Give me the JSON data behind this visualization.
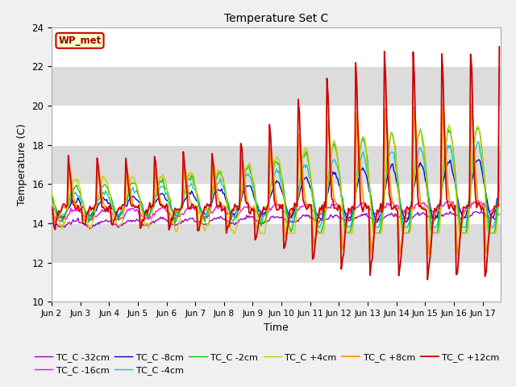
{
  "title": "Temperature Set C",
  "xlabel": "Time",
  "ylabel": "Temperature (C)",
  "ylim": [
    10,
    24
  ],
  "xlim": [
    0,
    375
  ],
  "bg_light": "#f0f0f0",
  "bg_dark": "#dcdcdc",
  "grid_line_color": "#ffffff",
  "series_colors": {
    "TC_C -32cm": "#9900cc",
    "TC_C -16cm": "#ff00ff",
    "TC_C -8cm": "#0000cc",
    "TC_C -4cm": "#00cccc",
    "TC_C -2cm": "#00cc00",
    "TC_C +4cm": "#cccc00",
    "TC_C +8cm": "#ff9900",
    "TC_C +12cm": "#cc0000"
  },
  "wp_met_box": {
    "text": "WP_met",
    "facecolor": "#ffffcc",
    "edgecolor": "#cc0000",
    "textcolor": "#990000"
  },
  "xtick_labels": [
    "Jun 2",
    "Jun 3",
    "Jun 4",
    "Jun 5",
    "Jun 6",
    "Jun 7",
    "Jun 8",
    "Jun 9",
    "Jun 10",
    "Jun 11",
    "Jun 12",
    "Jun 13",
    "Jun 14",
    "Jun 15",
    "Jun 16",
    "Jun 17"
  ],
  "xtick_positions": [
    0,
    24,
    48,
    72,
    96,
    120,
    144,
    168,
    192,
    216,
    240,
    264,
    288,
    312,
    336,
    360
  ],
  "yticks": [
    10,
    12,
    14,
    16,
    18,
    20,
    22,
    24
  ],
  "figsize": [
    6.4,
    4.8
  ],
  "dpi": 100
}
